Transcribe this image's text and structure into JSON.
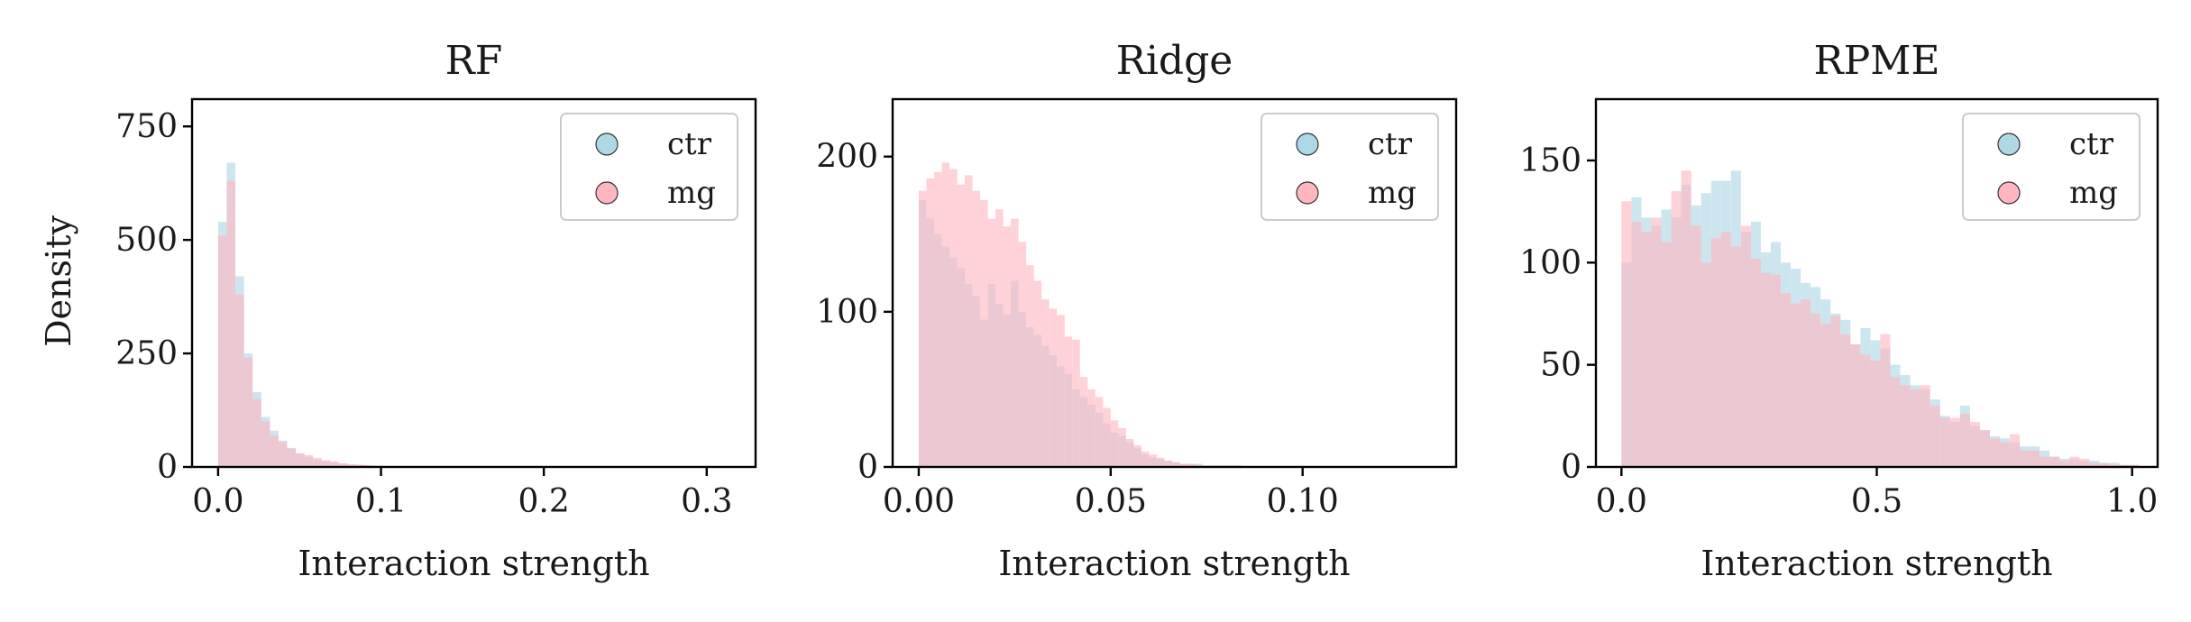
{
  "figure": {
    "ylabel": "Density",
    "legend": [
      "ctr",
      "mg"
    ]
  },
  "colors": {
    "ctr": "#add8e6",
    "mg": "#ffb6c1",
    "axis": "#000000",
    "marker_edge": "#333333"
  },
  "chart_data": [
    {
      "type": "histogram",
      "title": "RF",
      "xlabel": "Interaction strength",
      "ylabel": "Density",
      "xlim": [
        -0.016,
        0.33
      ],
      "ylim": [
        0,
        810
      ],
      "xticks": [
        0.0,
        0.1,
        0.2,
        0.3
      ],
      "xtick_labels": [
        "0.0",
        "0.1",
        "0.2",
        "0.3"
      ],
      "yticks": [
        0,
        250,
        500,
        750
      ],
      "ytick_labels": [
        "0",
        "250",
        "500",
        "750"
      ],
      "legend_position": "top-right",
      "bin_start": 0.0,
      "bin_width": 0.0053,
      "series": [
        {
          "name": "ctr",
          "values": [
            540,
            670,
            420,
            250,
            165,
            110,
            80,
            58,
            42,
            30,
            22,
            16,
            12,
            9,
            7,
            5,
            4,
            3,
            2,
            2,
            1,
            1,
            1,
            1
          ]
        },
        {
          "name": "mg",
          "values": [
            510,
            630,
            380,
            240,
            150,
            100,
            70,
            55,
            40,
            30,
            26,
            20,
            15,
            12,
            8,
            6,
            5,
            4,
            3,
            2,
            2,
            1,
            1,
            1
          ]
        }
      ]
    },
    {
      "type": "histogram",
      "title": "Ridge",
      "xlabel": "Interaction strength",
      "ylabel": "",
      "xlim": [
        -0.0068,
        0.14
      ],
      "ylim": [
        0,
        237
      ],
      "xticks": [
        0.0,
        0.05,
        0.1
      ],
      "xtick_labels": [
        "0.00",
        "0.05",
        "0.10"
      ],
      "yticks": [
        0,
        100,
        200
      ],
      "ytick_labels": [
        "0",
        "100",
        "200"
      ],
      "legend_position": "top-right",
      "bin_start": 0.0,
      "bin_width": 0.002,
      "series": [
        {
          "name": "ctr",
          "values": [
            172,
            160,
            150,
            142,
            135,
            128,
            118,
            110,
            95,
            118,
            105,
            98,
            120,
            100,
            90,
            85,
            78,
            72,
            65,
            60,
            50,
            45,
            40,
            35,
            28,
            22,
            20,
            16,
            12,
            8,
            6,
            5,
            4,
            3,
            2,
            2,
            2,
            1,
            1,
            1,
            1,
            1
          ]
        },
        {
          "name": "mg",
          "values": [
            178,
            186,
            190,
            196,
            192,
            182,
            188,
            178,
            172,
            160,
            166,
            155,
            160,
            145,
            130,
            120,
            108,
            102,
            98,
            84,
            82,
            58,
            50,
            45,
            38,
            30,
            25,
            18,
            14,
            10,
            8,
            6,
            4,
            3,
            2,
            2,
            1,
            1,
            1,
            1,
            1,
            1
          ]
        }
      ]
    },
    {
      "type": "histogram",
      "title": "RPME",
      "xlabel": "Interaction strength",
      "ylabel": "",
      "xlim": [
        -0.05,
        1.05
      ],
      "ylim": [
        0,
        180
      ],
      "xticks": [
        0.0,
        0.5,
        1.0
      ],
      "xtick_labels": [
        "0.0",
        "0.5",
        "1.0"
      ],
      "yticks": [
        0,
        50,
        100,
        150
      ],
      "ytick_labels": [
        "0",
        "50",
        "100",
        "150"
      ],
      "legend_position": "top-right",
      "bin_start": 0.0,
      "bin_width": 0.0195,
      "series": [
        {
          "name": "ctr",
          "values": [
            100,
            132,
            122,
            118,
            126,
            122,
            138,
            128,
            134,
            140,
            140,
            145,
            115,
            120,
            105,
            110,
            100,
            97,
            90,
            88,
            82,
            75,
            72,
            60,
            68,
            62,
            58,
            50,
            45,
            40,
            38,
            33,
            25,
            22,
            30,
            20,
            18,
            15,
            14,
            12,
            10,
            10,
            8,
            5,
            4,
            4,
            3,
            3,
            2,
            2,
            1,
            1
          ]
        },
        {
          "name": "mg",
          "values": [
            130,
            120,
            115,
            122,
            110,
            135,
            145,
            118,
            100,
            112,
            115,
            108,
            118,
            102,
            95,
            94,
            85,
            80,
            82,
            75,
            70,
            74,
            65,
            60,
            55,
            52,
            65,
            44,
            40,
            38,
            40,
            30,
            24,
            24,
            26,
            22,
            18,
            14,
            12,
            16,
            8,
            8,
            5,
            5,
            3,
            5,
            4,
            2,
            2,
            1,
            1,
            1
          ]
        }
      ]
    }
  ]
}
